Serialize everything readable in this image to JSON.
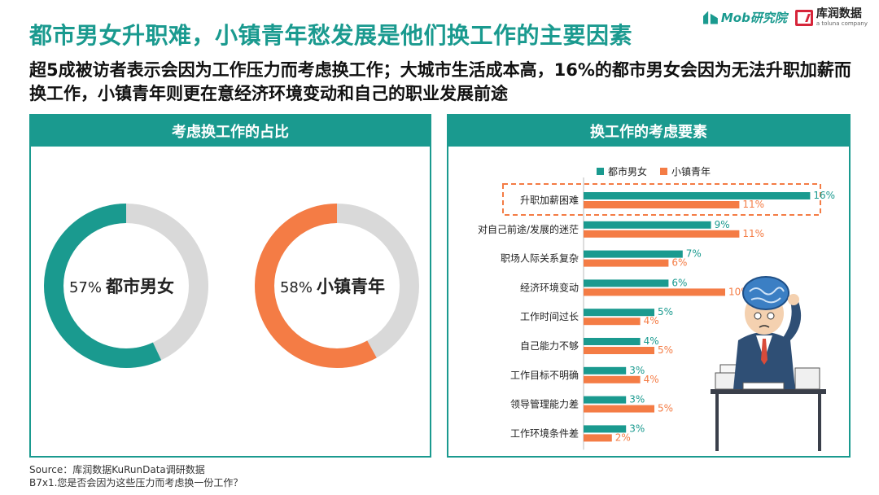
{
  "header": {
    "title": "都市男女升职难，小镇青年愁发展是他们换工作的主要因素",
    "subtitle": "超5成被访者表示会因为工作压力而考虑换工作；大城市生活成本高，16%的都市男女会因为无法升职加薪而换工作，小镇青年则更在意经济环境变动和自己的职业发展前途",
    "logo_mob": "Mob研究院",
    "logo_kr": "库润数据",
    "logo_kr_sub": "a toluna company"
  },
  "left_panel": {
    "heading": "考虑换工作的占比"
  },
  "right_panel": {
    "heading": "换工作的考虑要素"
  },
  "colors": {
    "teal": "#1a9a8f",
    "orange": "#f47c45",
    "grey": "#d9d9d9",
    "highlight": "#f47c45"
  },
  "chart_data": [
    {
      "type": "pie",
      "style": "donut",
      "slices": [
        {
          "label": "都市男女",
          "value": 57,
          "value_label": "57%",
          "rest": 43,
          "color": "#1a9a8f"
        },
        {
          "label": "小镇青年",
          "value": 58,
          "value_label": "58%",
          "rest": 42,
          "color": "#f47c45"
        }
      ]
    },
    {
      "type": "bar",
      "orientation": "horizontal",
      "legend_position": "top",
      "categories": [
        "升职加薪困难",
        "对自己前途/发展的迷茫",
        "职场人际关系复杂",
        "经济环境变动",
        "工作时间过长",
        "自己能力不够",
        "工作目标不明确",
        "领导管理能力差",
        "工作环境条件差"
      ],
      "series": [
        {
          "name": "都市男女",
          "color": "#1a9a8f",
          "values": [
            16,
            9,
            7,
            6,
            5,
            4,
            3,
            3,
            3
          ],
          "labels": [
            "16%",
            "9%",
            "7%",
            "6%",
            "5%",
            "4%",
            "3%",
            "3%",
            "3%"
          ]
        },
        {
          "name": "小镇青年",
          "color": "#f47c45",
          "values": [
            11,
            11,
            6,
            10,
            4,
            5,
            4,
            5,
            2
          ],
          "labels": [
            "11%",
            "11%",
            "6%",
            "10%",
            "4%",
            "5%",
            "4%",
            "5%",
            "2%"
          ]
        }
      ],
      "highlighted_category": "升职加薪困难"
    }
  ],
  "footer": {
    "source": "Source：库润数据KuRunData调研数据",
    "question": "B7x1.您是否会因为这些压力而考虑换一份工作？"
  }
}
